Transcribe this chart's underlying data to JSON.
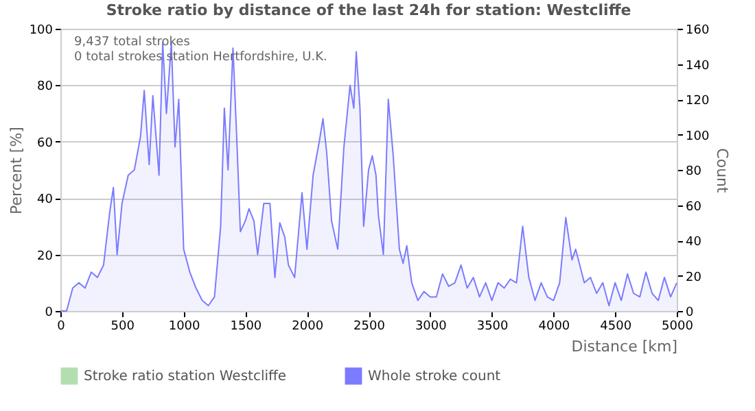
{
  "chart_data": {
    "type": "area",
    "title": "Stroke ratio by distance of the last 24h for station: Westcliffe",
    "annotations": [
      "9,437 total strokes",
      "0 total strokes station Hertfordshire, U.K."
    ],
    "xlabel": "Distance    [km]",
    "ylabel": "Percent    [%]",
    "y2label": "Count",
    "xlim": [
      0,
      5000
    ],
    "xticks": [
      0,
      500,
      1000,
      1500,
      2000,
      2500,
      3000,
      3500,
      4000,
      4500,
      5000
    ],
    "ylim": [
      0,
      100
    ],
    "yticks": [
      0,
      20,
      40,
      60,
      80,
      100
    ],
    "y2lim": [
      0,
      160
    ],
    "y2ticks": [
      0,
      20,
      40,
      60,
      80,
      100,
      120,
      140,
      160
    ],
    "grid": "y",
    "legend": "bottom",
    "x": [
      0,
      50,
      100,
      150,
      200,
      250,
      300,
      350,
      400,
      430,
      460,
      500,
      550,
      600,
      650,
      680,
      720,
      750,
      800,
      830,
      860,
      900,
      930,
      960,
      1000,
      1050,
      1100,
      1150,
      1200,
      1250,
      1300,
      1330,
      1360,
      1400,
      1430,
      1460,
      1500,
      1530,
      1570,
      1600,
      1650,
      1700,
      1740,
      1780,
      1820,
      1850,
      1900,
      1960,
      2000,
      2050,
      2100,
      2130,
      2160,
      2200,
      2250,
      2300,
      2350,
      2380,
      2400,
      2430,
      2460,
      2500,
      2530,
      2560,
      2580,
      2620,
      2660,
      2700,
      2750,
      2780,
      2810,
      2850,
      2900,
      2950,
      3000,
      3050,
      3100,
      3150,
      3200,
      3250,
      3300,
      3350,
      3400,
      3450,
      3500,
      3550,
      3600,
      3650,
      3700,
      3750,
      3800,
      3850,
      3900,
      3950,
      4000,
      4050,
      4100,
      4150,
      4180,
      4250,
      4300,
      4350,
      4400,
      4450,
      4500,
      4550,
      4600,
      4650,
      4700,
      4750,
      4800,
      4850,
      4900,
      4950,
      5000
    ],
    "series": [
      {
        "name": "Stroke ratio station Westcliffe",
        "color": "#b3dfb0",
        "type": "line",
        "values": [
          null,
          null,
          null,
          null,
          null,
          null,
          null,
          null,
          null,
          null,
          null,
          null,
          null,
          null,
          null,
          null,
          null,
          null,
          null,
          null,
          null,
          null,
          null,
          null,
          null,
          null,
          null,
          null,
          null,
          null,
          null,
          null,
          null,
          null,
          null,
          null,
          null,
          null,
          null,
          null,
          null,
          null,
          null,
          null,
          null,
          null,
          null,
          null,
          null,
          null,
          null,
          null,
          null,
          null,
          null,
          null,
          null,
          null,
          null,
          null,
          null,
          null,
          null,
          null,
          null,
          null,
          null,
          null,
          null,
          null,
          null,
          null,
          null,
          null,
          null,
          null,
          null,
          null,
          null,
          null,
          null,
          null,
          null,
          null,
          null,
          null,
          null,
          null,
          null,
          null,
          null,
          null,
          null,
          null,
          null,
          null,
          null,
          null,
          null,
          null,
          null,
          null,
          null,
          null,
          null,
          null,
          null,
          null,
          null,
          null,
          null,
          null,
          null,
          null,
          null
        ]
      },
      {
        "name": "Whole stroke count",
        "color": "#7b7bff",
        "axis": "y2",
        "values": [
          0,
          0,
          13,
          16,
          13,
          22,
          19,
          26,
          56,
          70,
          32,
          61,
          77,
          80,
          99,
          125,
          83,
          122,
          77,
          152,
          112,
          152,
          93,
          120,
          35,
          22,
          13,
          6,
          3,
          8,
          48,
          115,
          80,
          149,
          99,
          45,
          51,
          58,
          51,
          32,
          61,
          61,
          19,
          50,
          42,
          26,
          19,
          67,
          35,
          77,
          96,
          109,
          90,
          51,
          35,
          93,
          128,
          115,
          147,
          115,
          48,
          80,
          88,
          77,
          54,
          32,
          120,
          88,
          35,
          27,
          37,
          16,
          6,
          11,
          8,
          8,
          21,
          14,
          16,
          26,
          13,
          19,
          8,
          16,
          6,
          16,
          13,
          18,
          16,
          48,
          19,
          6,
          16,
          8,
          6,
          16,
          53,
          29,
          35,
          16,
          19,
          10,
          16,
          3,
          16,
          6,
          21,
          10,
          8,
          22,
          10,
          6,
          19,
          8,
          16
        ]
      }
    ]
  }
}
